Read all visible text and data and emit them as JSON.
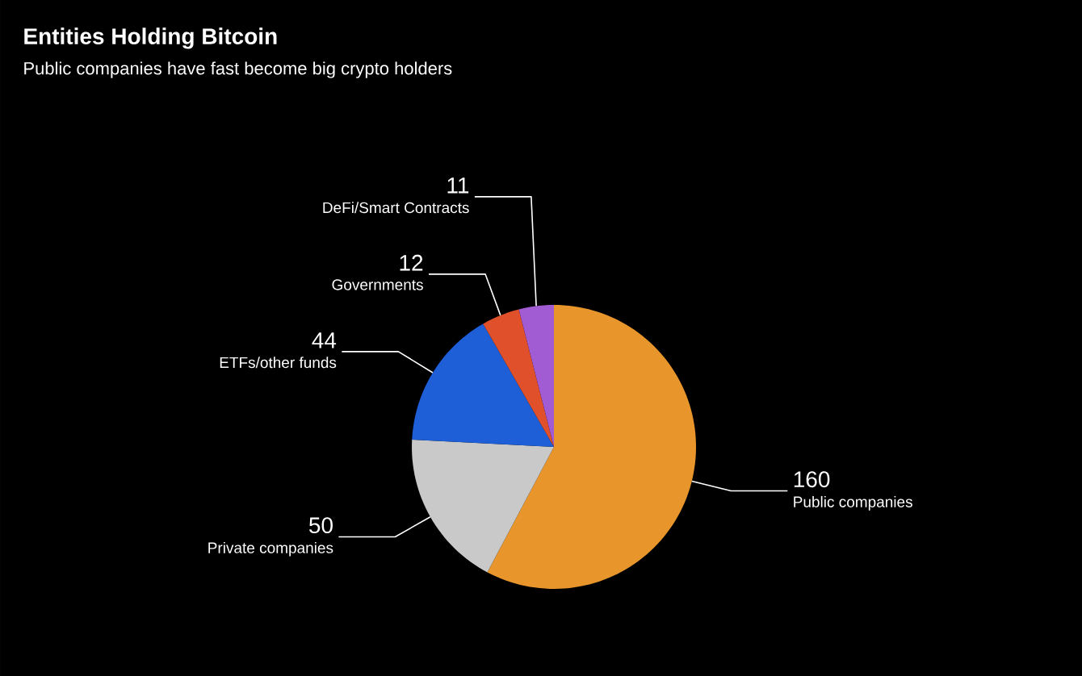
{
  "chart_data": {
    "type": "pie",
    "title": "Entities Holding Bitcoin",
    "subtitle": "Public companies have fast become big crypto holders",
    "categories": [
      "Public companies",
      "Private companies",
      "ETFs/other funds",
      "Governments",
      "DeFi/Smart Contracts"
    ],
    "values": [
      160,
      50,
      44,
      12,
      11
    ],
    "colors": [
      "#e8952c",
      "#c9c9c9",
      "#1e5fd8",
      "#e0502a",
      "#a15bd3"
    ],
    "data_labels": true
  }
}
